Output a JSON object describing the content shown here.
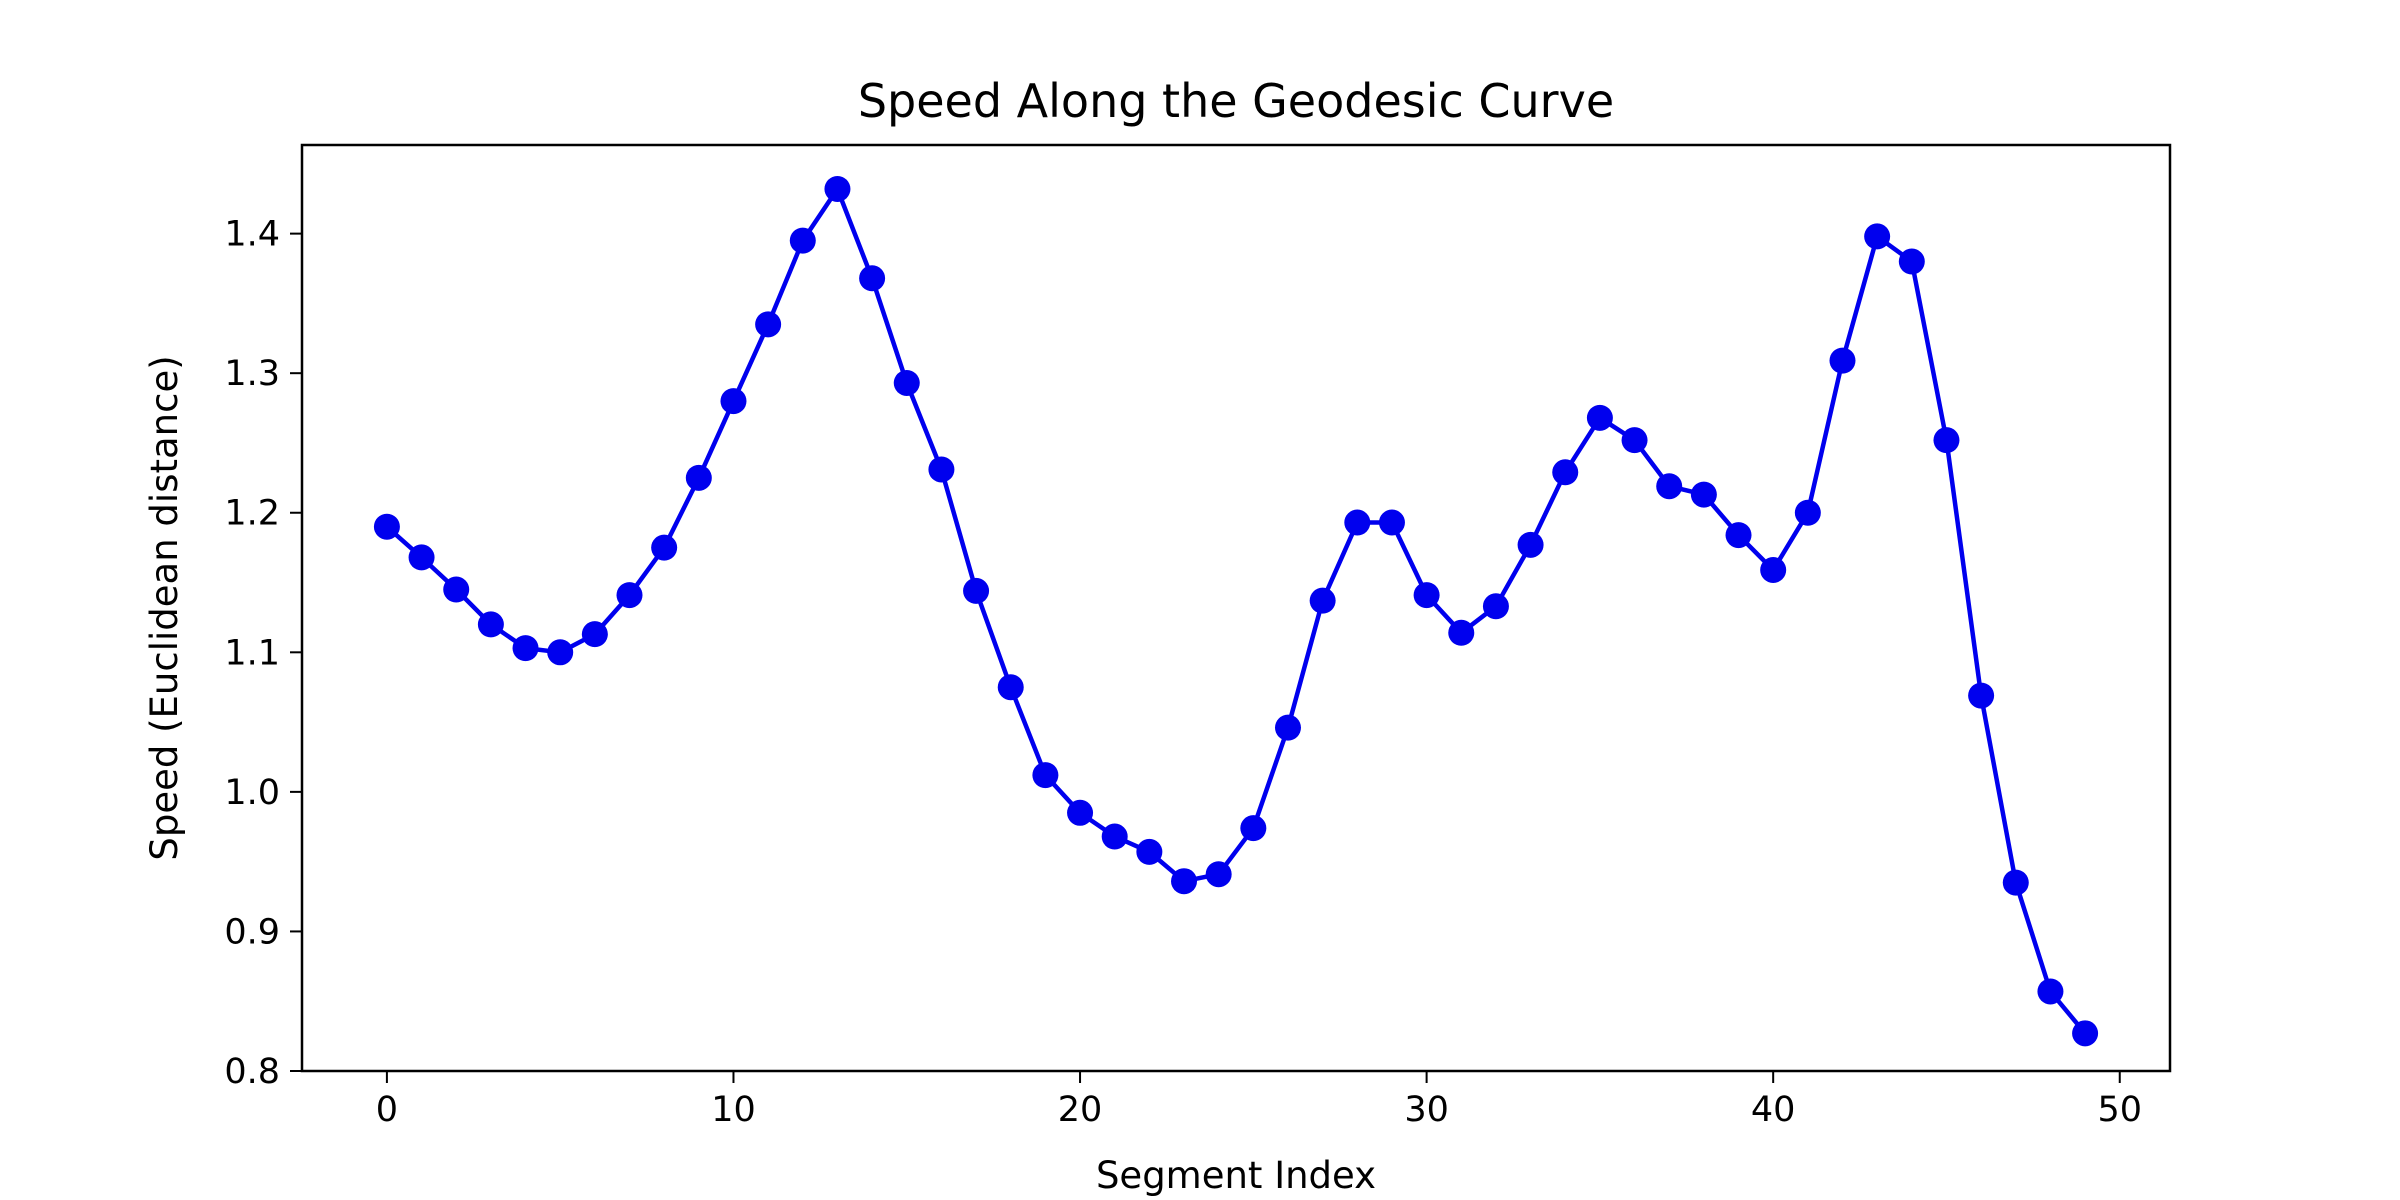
{
  "chart_data": {
    "type": "line",
    "title": "Speed Along the Geodesic Curve",
    "xlabel": "Segment Index",
    "ylabel": "Speed (Euclidean distance)",
    "xlim": [
      -2.45,
      51.45
    ],
    "ylim": [
      0.8,
      1.4635
    ],
    "xticks": [
      0,
      10,
      20,
      30,
      40,
      50
    ],
    "yticks": [
      0.8,
      0.9,
      1.0,
      1.1,
      1.2,
      1.3,
      1.4
    ],
    "ytick_labels": [
      "0.8",
      "0.9",
      "1.0",
      "1.1",
      "1.2",
      "1.3",
      "1.4"
    ],
    "grid": false,
    "legend": "none",
    "series": [
      {
        "color": "#0000ee",
        "marker": "circle",
        "x": [
          0,
          1,
          2,
          3,
          4,
          5,
          6,
          7,
          8,
          9,
          10,
          11,
          12,
          13,
          14,
          15,
          16,
          17,
          18,
          19,
          20,
          21,
          22,
          23,
          24,
          25,
          26,
          27,
          28,
          29,
          30,
          31,
          32,
          33,
          34,
          35,
          36,
          37,
          38,
          39,
          40,
          41,
          42,
          43,
          44,
          45,
          46,
          47,
          48,
          49
        ],
        "y": [
          1.19,
          1.168,
          1.145,
          1.12,
          1.103,
          1.1,
          1.113,
          1.141,
          1.175,
          1.225,
          1.28,
          1.335,
          1.395,
          1.432,
          1.368,
          1.293,
          1.231,
          1.144,
          1.075,
          1.012,
          0.985,
          0.968,
          0.957,
          0.936,
          0.941,
          0.974,
          1.046,
          1.137,
          1.193,
          1.193,
          1.141,
          1.114,
          1.133,
          1.177,
          1.229,
          1.268,
          1.252,
          1.219,
          1.213,
          1.184,
          1.159,
          1.2,
          1.309,
          1.398,
          1.38,
          1.252,
          1.069,
          0.935,
          0.857,
          0.827
        ]
      }
    ]
  }
}
